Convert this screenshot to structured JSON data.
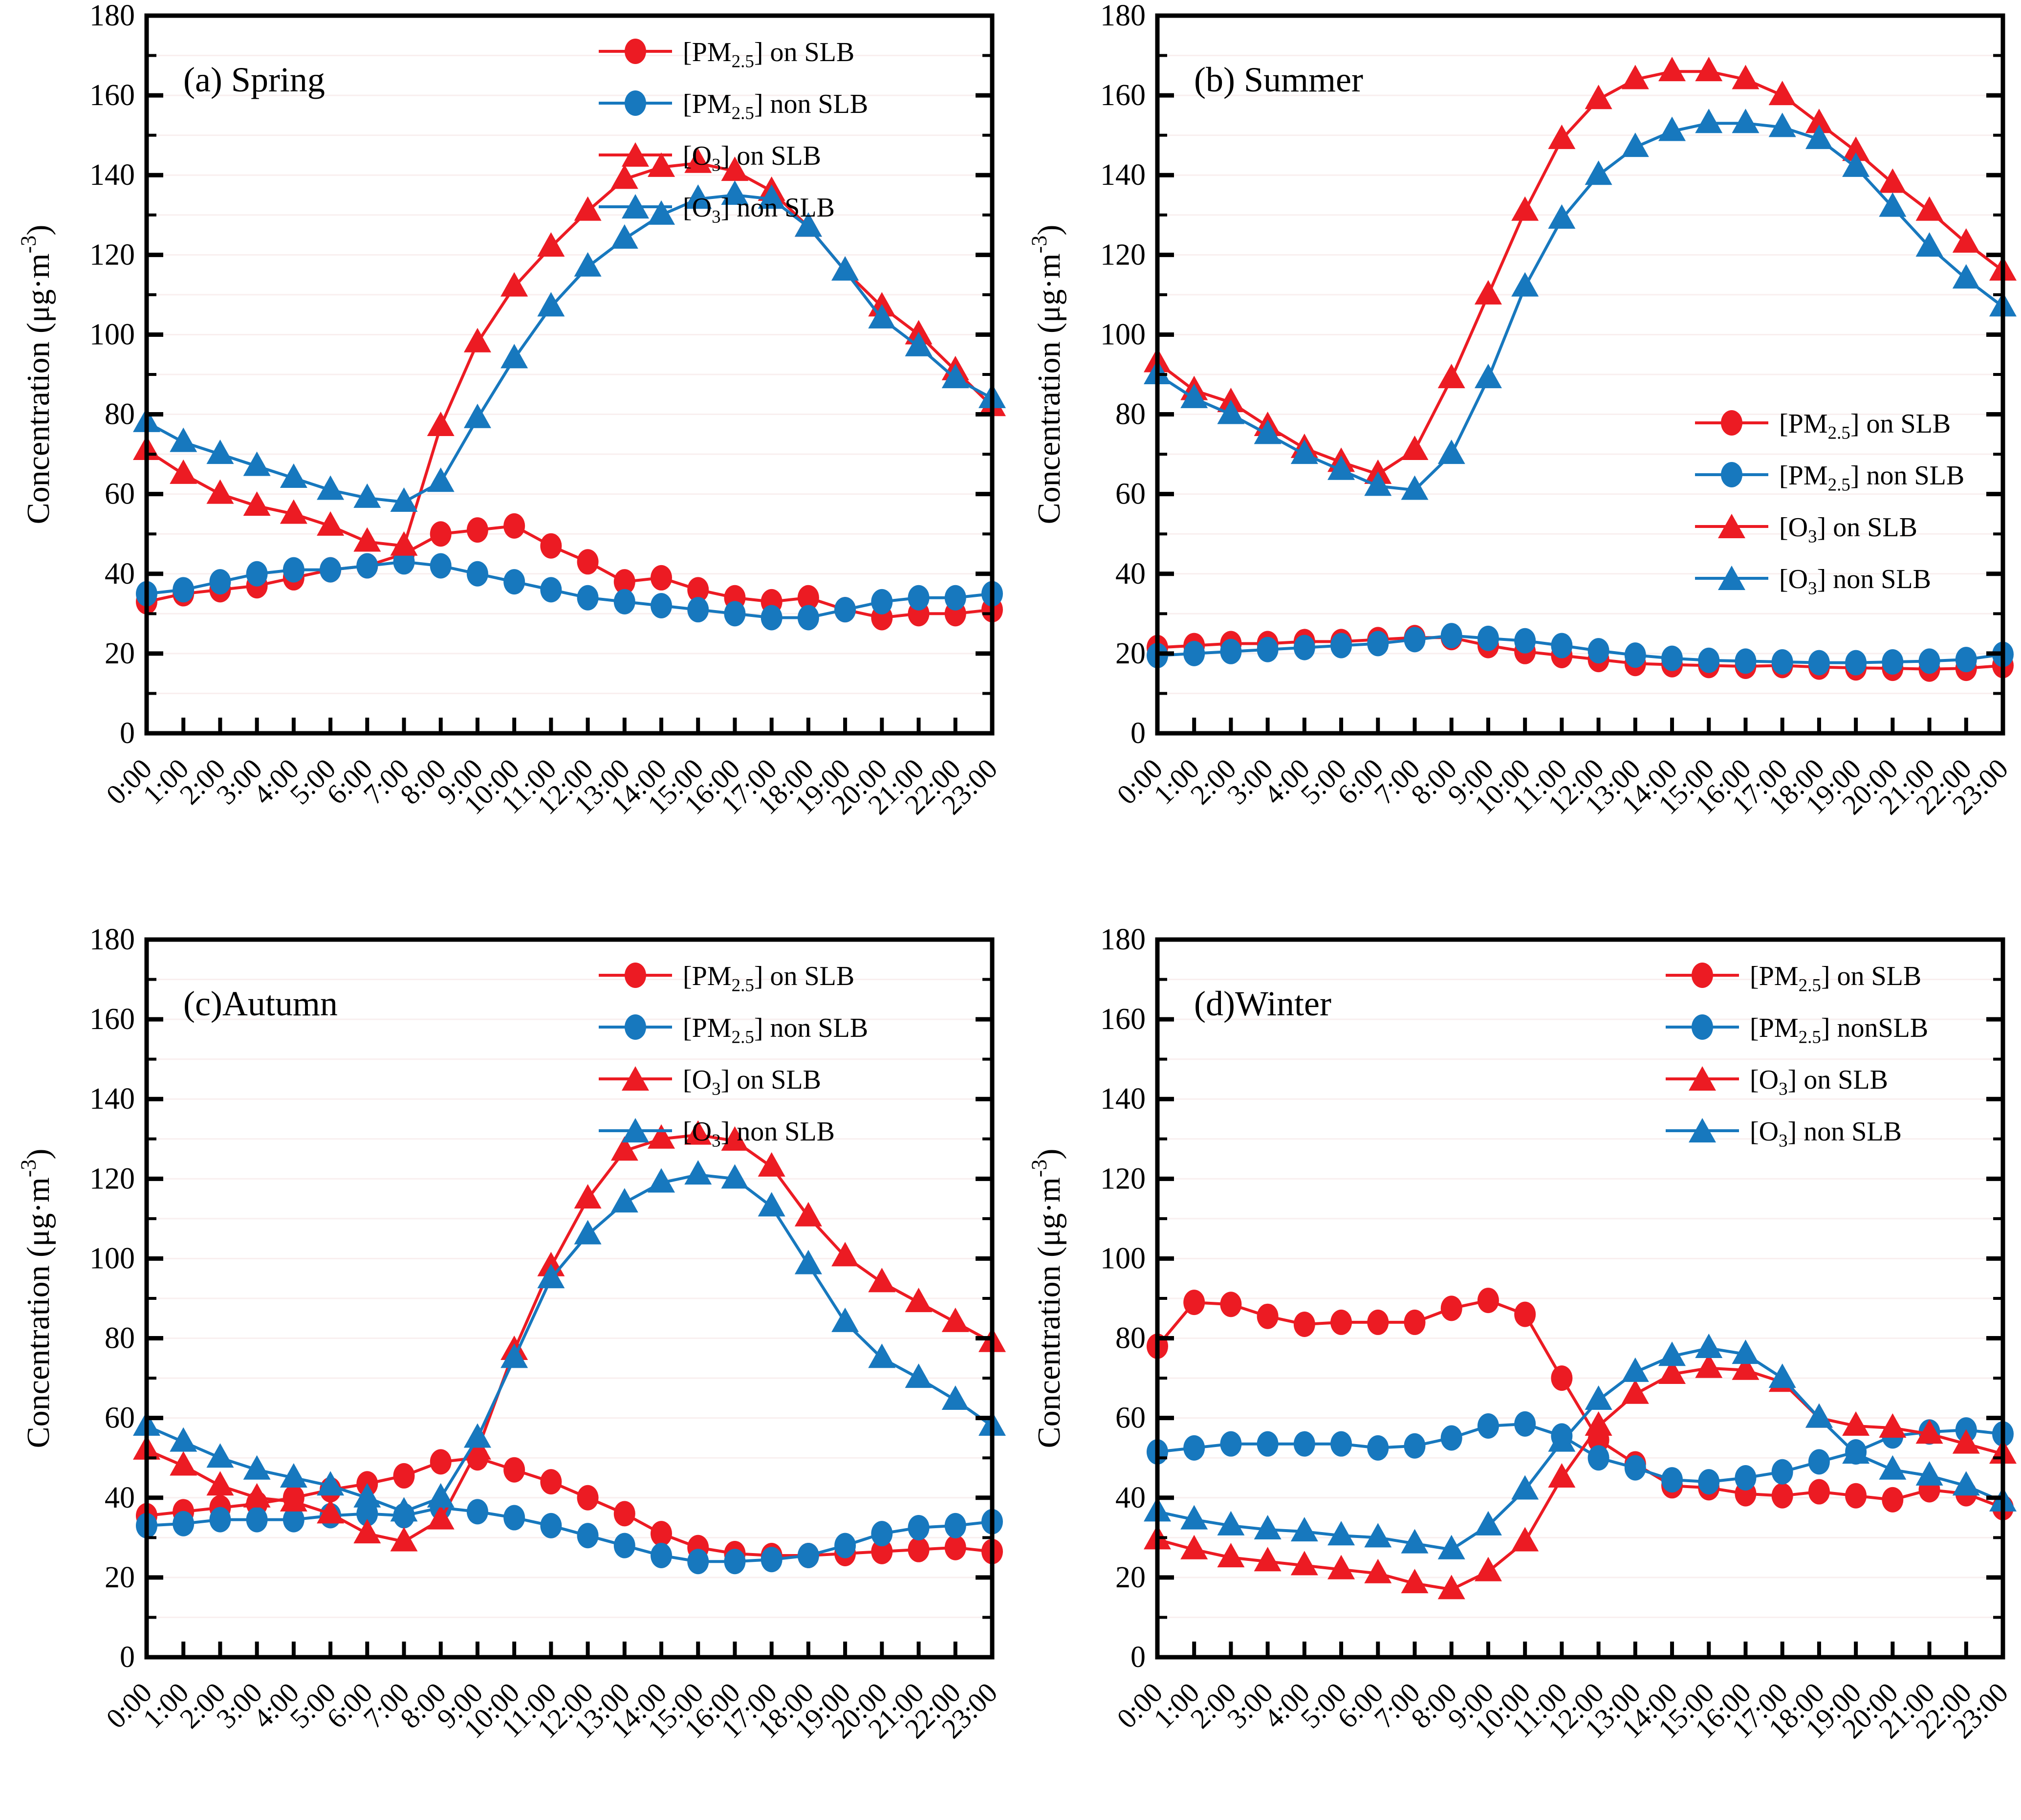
{
  "figure": {
    "description": "Four-panel seasonal diurnal variation chart of PM2.5 and O3 concentrations on sea-land-breeze (SLB) days vs non-SLB days",
    "ylabel": "Concentration (μg·m^{-3})",
    "colors": {
      "red": "#EC1B23",
      "blue": "#1778BE",
      "axis": "#000000",
      "grid": "#f9efef"
    }
  },
  "hours": [
    "0:00",
    "1:00",
    "2:00",
    "3:00",
    "4:00",
    "5:00",
    "6:00",
    "7:00",
    "8:00",
    "9:00",
    "10:00",
    "11:00",
    "12:00",
    "13:00",
    "14:00",
    "15:00",
    "16:00",
    "17:00",
    "18:00",
    "19:00",
    "20:00",
    "21:00",
    "22:00",
    "23:00"
  ],
  "chart_data": [
    {
      "id": "a",
      "type": "line",
      "title": "(a) Spring",
      "xlabel": "",
      "ylabel": "Concentration (μg·m^{-3})",
      "ylim": [
        0,
        180
      ],
      "ytick_major": 20,
      "ytick_minor": 10,
      "grid": "faint-horizontal",
      "legend_position": "top-right",
      "legend_xy": [
        1225,
        95
      ],
      "series": [
        {
          "name": "[PM_{2.5}] on SLB",
          "color": "#EC1B23",
          "marker": "circle",
          "values": [
            33,
            35,
            36,
            37,
            39,
            41,
            42,
            45,
            50,
            51,
            52,
            47,
            43,
            38,
            39,
            36,
            34,
            33,
            34,
            31,
            29,
            30,
            30,
            31
          ]
        },
        {
          "name": "[PM_{2.5}] non SLB",
          "color": "#1778BE",
          "marker": "circle",
          "values": [
            35,
            36,
            38,
            40,
            41,
            41,
            42,
            43,
            42,
            40,
            38,
            36,
            34,
            33,
            32,
            31,
            30,
            29,
            29,
            31,
            33,
            34,
            34,
            35
          ]
        },
        {
          "name": "[O_{3}] on SLB",
          "color": "#EC1B23",
          "marker": "triangle",
          "values": [
            71,
            65,
            60,
            57,
            55,
            52,
            48,
            47,
            77,
            98,
            112,
            122,
            131,
            139,
            142,
            143,
            141,
            136,
            127,
            116,
            107,
            100,
            91,
            82
          ]
        },
        {
          "name": "[O_{3}] non SLB",
          "color": "#1778BE",
          "marker": "triangle",
          "values": [
            78,
            73,
            70,
            67,
            64,
            61,
            59,
            58,
            63,
            79,
            94,
            107,
            117,
            124,
            130,
            134,
            135,
            134,
            127,
            116,
            104,
            97,
            89,
            84
          ]
        }
      ]
    },
    {
      "id": "b",
      "type": "line",
      "title": "(b) Summer",
      "xlabel": "",
      "ylabel": "Concentration (μg·m^{-3})",
      "ylim": [
        0,
        180
      ],
      "ytick_major": 20,
      "ytick_minor": 10,
      "grid": "faint-horizontal",
      "legend_position": "middle-right",
      "legend_xy": [
        1400,
        855
      ],
      "series": [
        {
          "name": "[PM_{2.5}] on SLB",
          "color": "#EC1B23",
          "marker": "circle",
          "values": [
            21.5,
            22,
            22.5,
            22.5,
            23,
            23,
            23.5,
            24,
            24,
            22,
            20.5,
            19.5,
            18.5,
            17.5,
            17.2,
            17,
            16.8,
            17,
            16.6,
            16.4,
            16.3,
            16.1,
            16.3,
            17
          ]
        },
        {
          "name": "[PM_{2.5}] non SLB",
          "color": "#1778BE",
          "marker": "circle",
          "values": [
            19.5,
            20,
            20.5,
            21,
            21.5,
            22,
            22.5,
            23.5,
            24.5,
            23.8,
            23.2,
            22,
            20.7,
            19.6,
            18.8,
            18.3,
            18.1,
            17.9,
            17.7,
            17.7,
            17.9,
            18.1,
            18.5,
            19.8
          ]
        },
        {
          "name": "[O_{3}] on SLB",
          "color": "#EC1B23",
          "marker": "triangle",
          "values": [
            93,
            86,
            83,
            77,
            71.5,
            68,
            65,
            71,
            89,
            110,
            131,
            149,
            159,
            164,
            166,
            166,
            164,
            160,
            153,
            146,
            138,
            131,
            123,
            116
          ]
        },
        {
          "name": "[O_{3}] non SLB",
          "color": "#1778BE",
          "marker": "triangle",
          "values": [
            90,
            84,
            80,
            75,
            70,
            66,
            62,
            61,
            70,
            89,
            112,
            129,
            140,
            147,
            151,
            153,
            153,
            152,
            149,
            142,
            132,
            122,
            114,
            107
          ]
        }
      ]
    },
    {
      "id": "c",
      "type": "line",
      "title": "(c)Autumn",
      "xlabel": "",
      "ylabel": "Concentration (μg·m^{-3})",
      "ylim": [
        0,
        180
      ],
      "ytick_major": 20,
      "ytick_minor": 10,
      "grid": "faint-horizontal",
      "legend_position": "top-right",
      "legend_xy": [
        1225,
        95
      ],
      "series": [
        {
          "name": "[PM_{2.5}] on SLB",
          "color": "#EC1B23",
          "marker": "circle",
          "values": [
            35.5,
            36.5,
            37.5,
            38.5,
            40,
            42,
            43.5,
            45.5,
            49,
            50,
            47,
            44,
            40,
            36,
            31,
            27.5,
            26,
            25.5,
            25.5,
            26,
            26.5,
            27,
            27.5,
            26.5
          ]
        },
        {
          "name": "[PM_{2.5}] non SLB",
          "color": "#1778BE",
          "marker": "circle",
          "values": [
            33,
            33.5,
            34.5,
            34.5,
            34.5,
            35.5,
            36,
            35.5,
            37.5,
            36.5,
            35,
            33,
            30.5,
            28,
            25.5,
            24,
            24,
            24.5,
            25.5,
            28,
            31,
            32.5,
            33,
            34
          ]
        },
        {
          "name": "[O_{3}] on SLB",
          "color": "#EC1B23",
          "marker": "triangle",
          "values": [
            52,
            48,
            43,
            40,
            39,
            36,
            31,
            29,
            34.5,
            52,
            77,
            98,
            115,
            127,
            130,
            131,
            129.5,
            123,
            110.5,
            100.5,
            94,
            89,
            84,
            79
          ]
        },
        {
          "name": "[O_{3}] non SLB",
          "color": "#1778BE",
          "marker": "triangle",
          "values": [
            58,
            54,
            50,
            47,
            45,
            43,
            40,
            36.5,
            40,
            55,
            75,
            95,
            106,
            114,
            119,
            121,
            120,
            113,
            98.5,
            84,
            75,
            70,
            64.5,
            58
          ]
        }
      ]
    },
    {
      "id": "d",
      "type": "line",
      "title": "(d)Winter",
      "xlabel": "",
      "ylabel": "Concentration (μg·m^{-3})",
      "ylim": [
        0,
        180
      ],
      "ytick_major": 20,
      "ytick_minor": 10,
      "grid": "faint-horizontal",
      "legend_position": "top-right",
      "legend_xy": [
        1340,
        95
      ],
      "series": [
        {
          "name": "[PM_{2.5}] on SLB",
          "color": "#EC1B23",
          "marker": "circle",
          "values": [
            78,
            89,
            88.5,
            85.5,
            83.5,
            84,
            84,
            84,
            87.5,
            89.5,
            86,
            70,
            54.5,
            48.5,
            43,
            42.5,
            41,
            40.5,
            41.5,
            40.5,
            39.5,
            42,
            41,
            37.5
          ]
        },
        {
          "name": "[PM_{2.5}] nonSLB",
          "color": "#1778BE",
          "marker": "circle",
          "values": [
            51.5,
            52.5,
            53.5,
            53.5,
            53.5,
            53.5,
            52.5,
            53,
            55,
            58,
            58.5,
            55.5,
            50,
            47.5,
            44.5,
            44,
            45,
            46.5,
            49,
            51.5,
            55.5,
            56.5,
            57,
            56
          ]
        },
        {
          "name": "[O_{3}] on SLB",
          "color": "#EC1B23",
          "marker": "triangle",
          "values": [
            29.5,
            27,
            25,
            24,
            23,
            22,
            21,
            18.5,
            17,
            21.5,
            29,
            45,
            58,
            66,
            71,
            72.5,
            72,
            69,
            60,
            58,
            57.5,
            56,
            53.5,
            51
          ]
        },
        {
          "name": "[O_{3}] non SLB",
          "color": "#1778BE",
          "marker": "triangle",
          "values": [
            36.5,
            34.5,
            33,
            32,
            31.5,
            30.5,
            30,
            28.5,
            27,
            33,
            42,
            54,
            64.5,
            71.5,
            75.5,
            77.5,
            76,
            70,
            60,
            51,
            47,
            45.5,
            43,
            39
          ]
        }
      ]
    }
  ]
}
